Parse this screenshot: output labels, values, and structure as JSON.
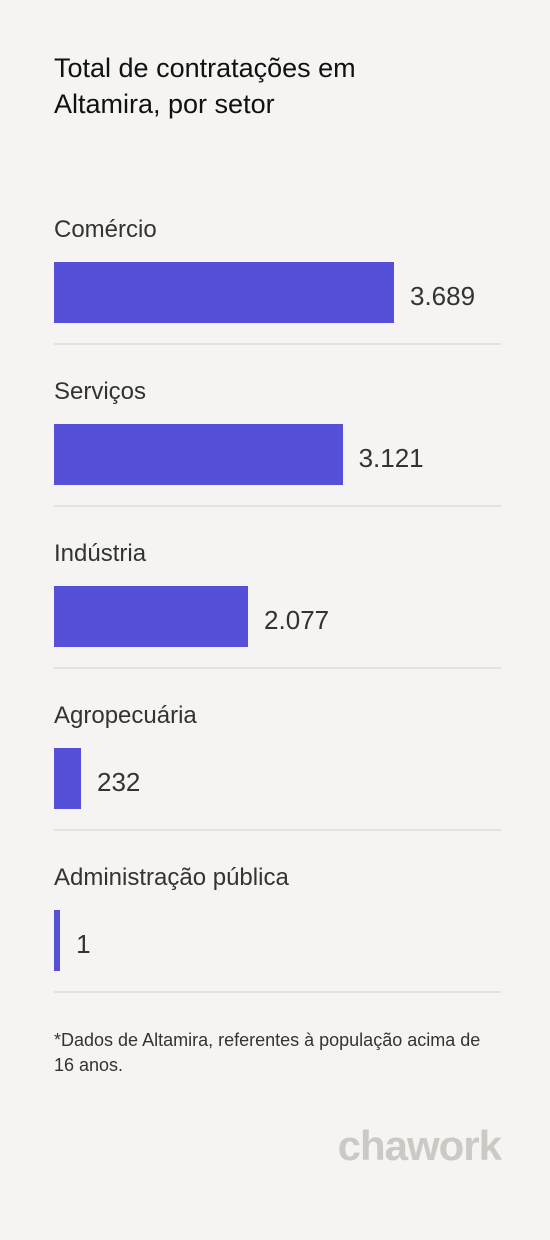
{
  "chart_data": {
    "type": "bar",
    "title": "Total de contratações em Altamira, por setor",
    "categories": [
      "Comércio",
      "Serviços",
      "Indústria",
      "Agropecuária",
      "Administração pública"
    ],
    "values": [
      3689,
      3121,
      2077,
      232,
      1
    ],
    "value_labels": [
      "3.689",
      "3.121",
      "2.077",
      "232",
      "1"
    ],
    "color": "#5650d8",
    "footnote": "*Dados de Altamira, referentes à população acima de 16 anos.",
    "brand": "chawork"
  }
}
